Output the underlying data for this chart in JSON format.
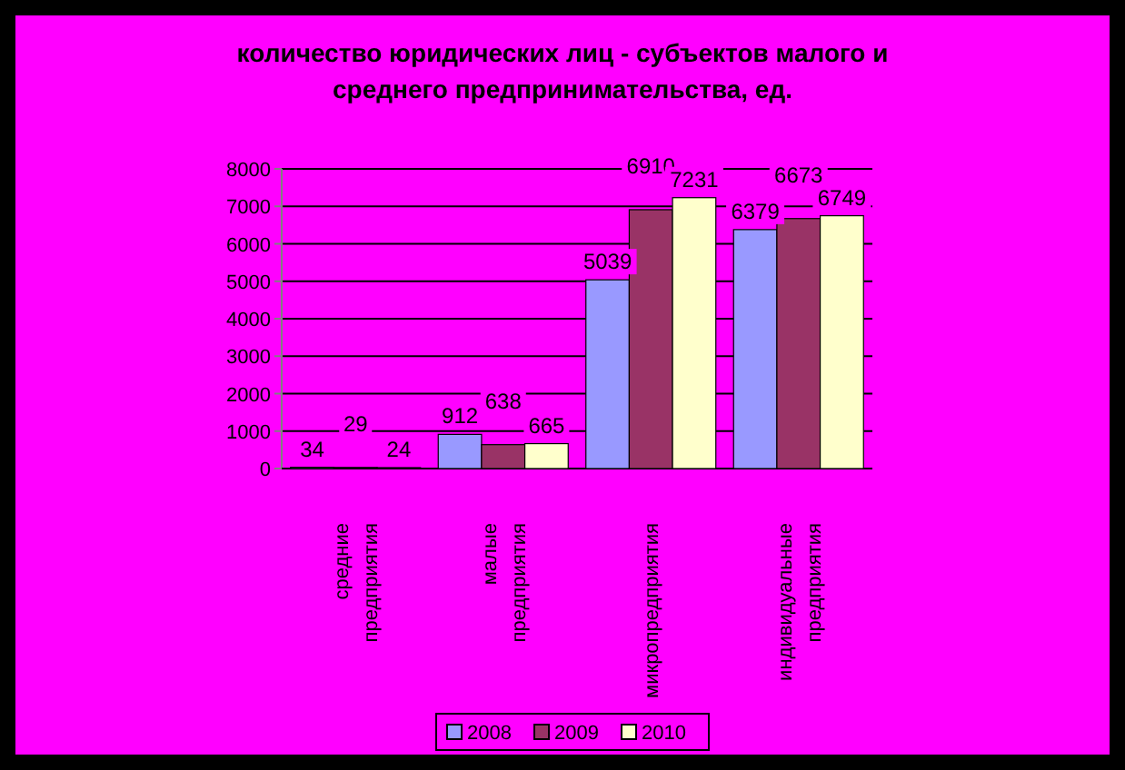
{
  "chart_data": {
    "type": "bar",
    "title": "количество юридических лиц - субъектов малого и среднего предпринимательства, ед.",
    "categories": [
      "средние предприятия",
      "малые предприятия",
      "микропредприятия",
      "индивидуальные предприятия"
    ],
    "series": [
      {
        "name": "2008",
        "color": "#9999ff",
        "values": [
          34,
          912,
          5039,
          6379
        ]
      },
      {
        "name": "2009",
        "color": "#993366",
        "values": [
          29,
          638,
          6910,
          6673
        ]
      },
      {
        "name": "2010",
        "color": "#ffffcc",
        "values": [
          24,
          665,
          7231,
          6749
        ]
      }
    ],
    "ylim": [
      0,
      8000
    ],
    "yticks": [
      0,
      1000,
      2000,
      3000,
      4000,
      5000,
      6000,
      7000,
      8000
    ],
    "grid": "y",
    "legend": "bottom",
    "data_labels": true
  }
}
